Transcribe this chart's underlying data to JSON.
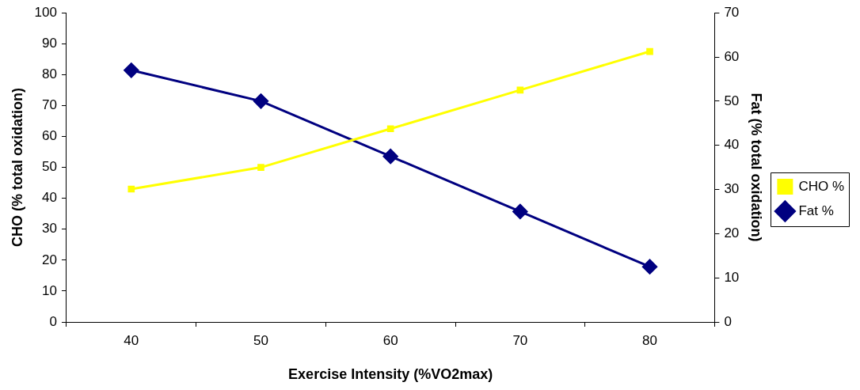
{
  "chart_data": {
    "type": "line",
    "xlabel": "Exercise Intensity (%VO2max)",
    "ylabel": "CHO (% total oxidation)",
    "y2label": "Fat (% total oxidation)",
    "categories": [
      "40",
      "50",
      "60",
      "70",
      "80"
    ],
    "series": [
      {
        "name": "CHO %",
        "color": "#ffff00",
        "marker": "square",
        "values": [
          43,
          50,
          62.5,
          75,
          87.5
        ]
      },
      {
        "name": "Fat %",
        "color": "#000080",
        "marker": "diamond",
        "axis": "y2",
        "values": [
          57,
          50,
          37.5,
          25,
          12.5
        ]
      }
    ],
    "ylim": [
      0,
      100
    ],
    "yticks": [
      0,
      10,
      20,
      30,
      40,
      50,
      60,
      70,
      80,
      90,
      100
    ],
    "y2lim": [
      0,
      70
    ],
    "y2ticks": [
      0,
      10,
      20,
      30,
      40,
      50,
      60,
      70
    ],
    "grid": false,
    "legend": "right",
    "line_style": "solid"
  }
}
